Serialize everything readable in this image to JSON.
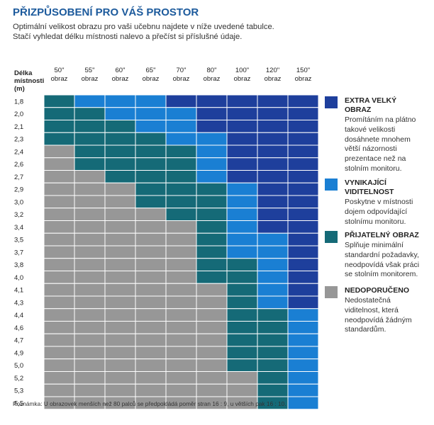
{
  "title": "PŘIZPŮSOBENÍ PRO VÁŠ PROSTOR",
  "subtitle_lines": [
    "Optimální velikost obrazu pro vaši učebnu najdete v níže uvedené tabulce.",
    "Stačí vyhledat délku místnosti nalevo a přečíst si příslušné údaje."
  ],
  "row_header_lines": [
    "Délka",
    "místnosti",
    "(m)"
  ],
  "note": "Poznámka: U obrazovek menších než 80 palců se předpokládá poměr stran 16 : 9, u větších pak 16 : 10.",
  "colors": {
    "extra": "#1e3f9c",
    "vynikajici": "#1a7fd3",
    "prijatelny": "#156a77",
    "nedoporuceno": "#979797"
  },
  "legend": [
    {
      "key": "extra",
      "title_lines": [
        "EXTRA VELKÝ",
        "OBRAZ"
      ],
      "desc_lines": [
        "Promítáním na plátno",
        "takové velikosti",
        "dosáhnete mnohem",
        "větší názornosti",
        "prezentace než na",
        "stolním monitoru."
      ]
    },
    {
      "key": "vynikajici",
      "title_lines": [
        "VYNIKAJÍCÍ",
        "VIDITELNOST"
      ],
      "desc_lines": [
        "Poskytne v místnosti",
        "dojem odpovídající",
        "stolnímu monitoru."
      ]
    },
    {
      "key": "prijatelny",
      "title_lines": [
        "PŘIJATELNÝ OBRAZ"
      ],
      "desc_lines": [
        "Splňuje minimální",
        "standardní požadavky,",
        "neodpovídá však práci",
        "se stolním monitorem."
      ]
    },
    {
      "key": "nedoporuceno",
      "title_lines": [
        "NEDOPORUČENO"
      ],
      "desc_lines": [
        "Nedostatečná",
        "viditelnost, která",
        "neodpovídá žádným",
        "standardům."
      ]
    }
  ],
  "chart_data": {
    "type": "heatmap",
    "columns": [
      {
        "size": "50\"",
        "label": "obraz"
      },
      {
        "size": "55\"",
        "label": "obraz"
      },
      {
        "size": "60\"",
        "label": "obraz"
      },
      {
        "size": "65\"",
        "label": "obraz"
      },
      {
        "size": "70\"",
        "label": "obraz"
      },
      {
        "size": "80\"",
        "label": "obraz"
      },
      {
        "size": "100\"",
        "label": "obraz"
      },
      {
        "size": "120\"",
        "label": "obraz"
      },
      {
        "size": "150\"",
        "label": "obraz"
      }
    ],
    "rows": [
      "1,8",
      "2,0",
      "2,1",
      "2,3",
      "2,4",
      "2,6",
      "2,7",
      "2,9",
      "3,0",
      "3,2",
      "3,4",
      "3,5",
      "3,7",
      "3,8",
      "4,0",
      "4,1",
      "4,3",
      "4,4",
      "4,6",
      "4,7",
      "4,9",
      "5,0",
      "5,2",
      "5,3",
      "5,5"
    ],
    "legend_keys": [
      "nedoporuceno",
      "prijatelny",
      "vynikajici",
      "extra"
    ],
    "cells": [
      [
        1,
        2,
        2,
        2,
        3,
        3,
        3,
        3,
        3
      ],
      [
        1,
        1,
        2,
        2,
        2,
        3,
        3,
        3,
        3
      ],
      [
        1,
        1,
        1,
        2,
        2,
        3,
        3,
        3,
        3
      ],
      [
        1,
        1,
        1,
        1,
        2,
        2,
        3,
        3,
        3
      ],
      [
        0,
        1,
        1,
        1,
        1,
        2,
        3,
        3,
        3
      ],
      [
        0,
        1,
        1,
        1,
        1,
        2,
        3,
        3,
        3
      ],
      [
        0,
        0,
        1,
        1,
        1,
        2,
        3,
        3,
        3
      ],
      [
        0,
        0,
        0,
        1,
        1,
        1,
        2,
        3,
        3
      ],
      [
        0,
        0,
        0,
        1,
        1,
        1,
        2,
        3,
        3
      ],
      [
        0,
        0,
        0,
        0,
        1,
        1,
        2,
        3,
        3
      ],
      [
        0,
        0,
        0,
        0,
        0,
        1,
        2,
        3,
        3
      ],
      [
        0,
        0,
        0,
        0,
        0,
        1,
        2,
        2,
        3
      ],
      [
        0,
        0,
        0,
        0,
        0,
        1,
        2,
        2,
        3
      ],
      [
        0,
        0,
        0,
        0,
        0,
        1,
        1,
        2,
        3
      ],
      [
        0,
        0,
        0,
        0,
        0,
        1,
        1,
        2,
        3
      ],
      [
        0,
        0,
        0,
        0,
        0,
        0,
        1,
        2,
        3
      ],
      [
        0,
        0,
        0,
        0,
        0,
        0,
        1,
        2,
        3
      ],
      [
        0,
        0,
        0,
        0,
        0,
        0,
        1,
        1,
        2
      ],
      [
        0,
        0,
        0,
        0,
        0,
        0,
        1,
        1,
        2
      ],
      [
        0,
        0,
        0,
        0,
        0,
        0,
        1,
        1,
        2
      ],
      [
        0,
        0,
        0,
        0,
        0,
        0,
        1,
        1,
        2
      ],
      [
        0,
        0,
        0,
        0,
        0,
        0,
        1,
        1,
        2
      ],
      [
        0,
        0,
        0,
        0,
        0,
        0,
        0,
        1,
        2
      ],
      [
        0,
        0,
        0,
        0,
        0,
        0,
        0,
        1,
        2
      ],
      [
        0,
        0,
        0,
        0,
        0,
        0,
        0,
        1,
        2
      ]
    ]
  }
}
